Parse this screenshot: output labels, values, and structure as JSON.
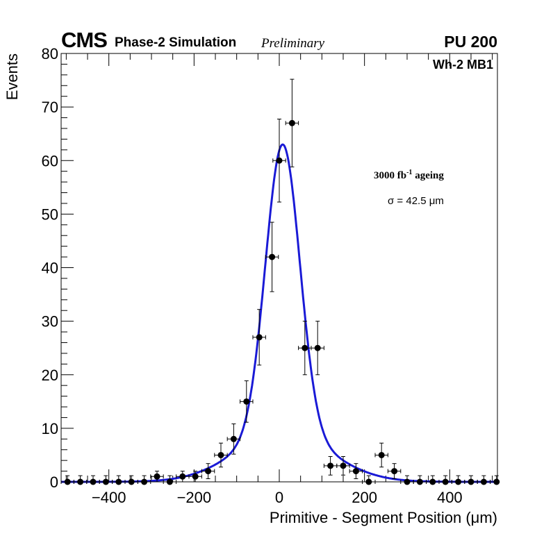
{
  "header": {
    "cms": "CMS",
    "subtitle": "Phase-2 Simulation",
    "preliminary": "Preliminary",
    "pileup": "PU 200",
    "station": "Wh-2 MB1"
  },
  "annotations": {
    "ageing_prefix": "3000 fb",
    "ageing_sup": "-1",
    "ageing_suffix": " ageing",
    "sigma": "σ = 42.5 μm"
  },
  "colors": {
    "fit": "#1a1ad6",
    "points": "#000000",
    "axes": "#000000"
  },
  "chart_data": {
    "type": "scatter",
    "title": "",
    "xlabel": "Primitive - Segment Position (μm)",
    "ylabel": "Events",
    "xlim": [
      -512,
      512
    ],
    "ylim": [
      0,
      80
    ],
    "xticks": [
      -400,
      -200,
      0,
      200,
      400
    ],
    "yticks": [
      0,
      10,
      20,
      30,
      40,
      50,
      60,
      70,
      80
    ],
    "bin_width": 30,
    "points": {
      "name": "data",
      "x": [
        -497,
        -467,
        -437,
        -407,
        -377,
        -347,
        -317,
        -287,
        -257,
        -227,
        -197,
        -167,
        -137,
        -107,
        -77,
        -47,
        -17,
        0,
        30,
        60,
        90,
        120,
        150,
        180,
        210,
        240,
        270,
        300,
        330,
        360,
        390,
        420,
        450,
        480,
        510
      ],
      "y": [
        0,
        0,
        0,
        0,
        0,
        0,
        0,
        1,
        0,
        1,
        1,
        2,
        5,
        8,
        15,
        27,
        42,
        60,
        67,
        25,
        25,
        3,
        3,
        2,
        0,
        5,
        2,
        0,
        0,
        0,
        0,
        0,
        0,
        0,
        0
      ]
    },
    "fit": {
      "name": "fit",
      "peak": 63,
      "mean": 8,
      "sigma_core": 40,
      "tail_amplitude": 9,
      "tail_sigma": 110,
      "x": [
        -512,
        -400,
        -300,
        -250,
        -200,
        -150,
        -100,
        -75,
        -50,
        -25,
        0,
        8,
        25,
        50,
        75,
        100,
        150,
        200,
        250,
        300,
        400,
        512
      ],
      "y": [
        0,
        0.1,
        0.3,
        0.6,
        1.3,
        3.7,
        9.0,
        14.4,
        25.0,
        40.0,
        57.5,
        63.0,
        58.5,
        40.5,
        20.0,
        10.0,
        4.0,
        1.5,
        0.5,
        0.1,
        0,
        0
      ]
    }
  }
}
